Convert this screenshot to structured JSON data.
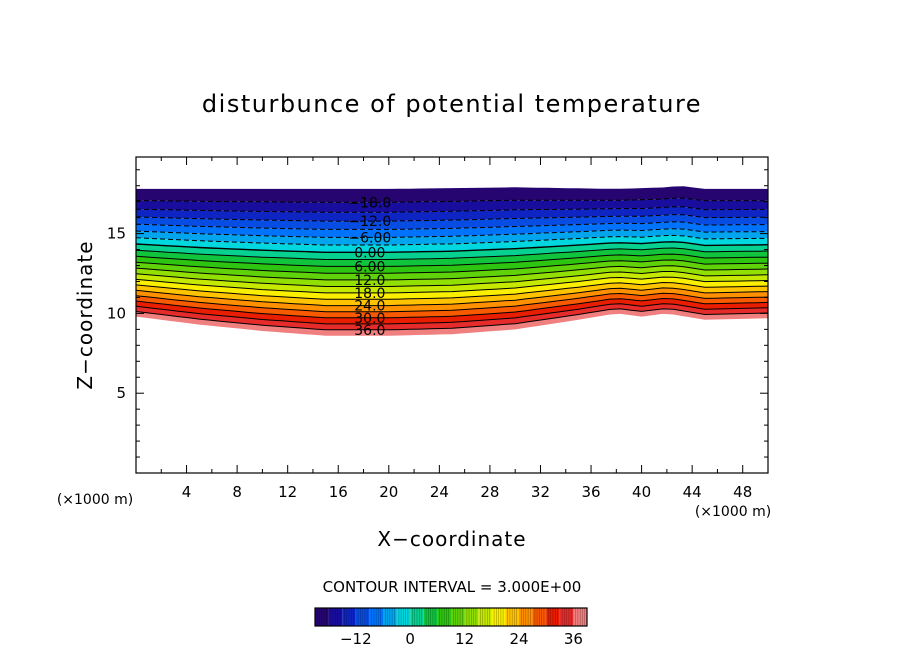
{
  "chart_data": {
    "type": "contour",
    "title": "disturbunce of potential temperature",
    "xlabel": "X−coordinate",
    "ylabel": "Z−coordinate",
    "x_unit": "(×1000 m)",
    "y_unit": "(×1000 m)",
    "xlim": [
      0,
      50
    ],
    "ylim": [
      0,
      19.8
    ],
    "x_ticks": [
      "4",
      "8",
      "12",
      "16",
      "20",
      "24",
      "28",
      "32",
      "36",
      "40",
      "44",
      "48"
    ],
    "y_ticks": [
      "5",
      "10",
      "15"
    ],
    "contour_interval_text": "CONTOUR INTERVAL = 3.000E+00",
    "contour_interval": 3.0,
    "value_range": [
      -21,
      39
    ],
    "layer_top_z": [
      [
        0,
        17.8
      ],
      [
        10,
        17.8
      ],
      [
        20,
        17.8
      ],
      [
        30,
        17.9
      ],
      [
        38,
        17.8
      ],
      [
        42,
        17.9
      ],
      [
        43,
        18.0
      ],
      [
        45,
        17.8
      ],
      [
        50,
        17.8
      ]
    ],
    "layer_bottom_z": [
      [
        0,
        9.8
      ],
      [
        5,
        9.3
      ],
      [
        10,
        8.9
      ],
      [
        15,
        8.6
      ],
      [
        20,
        8.6
      ],
      [
        25,
        8.7
      ],
      [
        30,
        9.0
      ],
      [
        35,
        9.6
      ],
      [
        38,
        10.0
      ],
      [
        40,
        9.8
      ],
      [
        42,
        10.0
      ],
      [
        45,
        9.6
      ],
      [
        50,
        9.7
      ]
    ],
    "contour_labels": [
      {
        "text": "−18.0",
        "value": -18
      },
      {
        "text": "−12.0",
        "value": -12
      },
      {
        "text": "−6.00",
        "value": -6
      },
      {
        "text": "0.00",
        "value": 0
      },
      {
        "text": "6.00",
        "value": 6
      },
      {
        "text": "12.0",
        "value": 12
      },
      {
        "text": "18.0",
        "value": 18
      },
      {
        "text": "24.0",
        "value": 24
      },
      {
        "text": "30.0",
        "value": 30
      },
      {
        "text": "36.0",
        "value": 36
      }
    ],
    "colorbar": {
      "min": -21,
      "max": 39,
      "ticks": [
        "−12",
        "0",
        "12",
        "24",
        "36"
      ],
      "tick_values": [
        -12,
        0,
        12,
        24,
        36
      ]
    }
  }
}
